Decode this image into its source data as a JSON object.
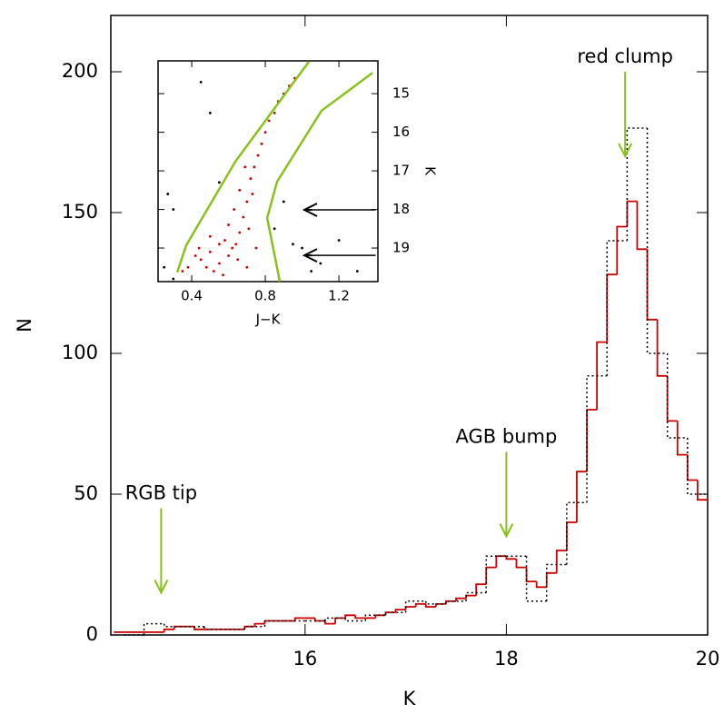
{
  "chart_data": [
    {
      "type": "histogram",
      "x_label": "K",
      "y_label": "N",
      "xlim": [
        14.07,
        20
      ],
      "ylim": [
        0,
        220
      ],
      "xticks": [
        16,
        18,
        20
      ],
      "yticks": [
        0,
        50,
        100,
        150,
        200
      ],
      "series": [
        {
          "color": "#cc0000",
          "style": "solid",
          "bins": [
            14.1,
            14.2,
            14.3,
            14.4,
            14.5,
            14.6,
            14.7,
            14.8,
            14.9,
            15.0,
            15.1,
            15.2,
            15.3,
            15.4,
            15.5,
            15.6,
            15.7,
            15.8,
            15.9,
            16.0,
            16.1,
            16.2,
            16.3,
            16.4,
            16.5,
            16.6,
            16.7,
            16.8,
            16.9,
            17.0,
            17.1,
            17.2,
            17.3,
            17.4,
            17.5,
            17.6,
            17.7,
            17.8,
            17.9,
            18.0,
            18.1,
            18.2,
            18.3,
            18.4,
            18.5,
            18.6,
            18.7,
            18.8,
            18.9,
            19.0,
            19.1,
            19.2,
            19.3,
            19.4,
            19.5,
            19.6,
            19.7,
            19.8,
            19.9,
            20.0
          ],
          "values": [
            1,
            1,
            1,
            1,
            1,
            2,
            3,
            3,
            2,
            2,
            2,
            2,
            2,
            3,
            4,
            5,
            5,
            5,
            6,
            6,
            5,
            4,
            6,
            7,
            6,
            6,
            7,
            8,
            9,
            10,
            11,
            10,
            11,
            12,
            13,
            14,
            18,
            24,
            28,
            27,
            24,
            19,
            17,
            22,
            30,
            40,
            58,
            80,
            104,
            128,
            145,
            154,
            137,
            112,
            92,
            76,
            64,
            55,
            48
          ]
        },
        {
          "color": "#000000",
          "style": "dotted",
          "bins": [
            14.2,
            14.4,
            14.6,
            14.8,
            15.0,
            15.2,
            15.4,
            15.6,
            15.8,
            16.0,
            16.2,
            16.4,
            16.6,
            16.8,
            17.0,
            17.2,
            17.4,
            17.6,
            17.8,
            18.0,
            18.2,
            18.4,
            18.6,
            18.8,
            19.0,
            19.2,
            19.4,
            19.6,
            19.8,
            20.0
          ],
          "values": [
            0,
            4,
            3,
            3,
            2,
            2,
            3,
            5,
            5,
            5,
            6,
            5,
            7,
            8,
            12,
            11,
            12,
            15,
            28,
            28,
            12,
            25,
            47,
            92,
            140,
            180,
            100,
            70,
            50
          ]
        }
      ],
      "annotations": [
        {
          "text": "RGB tip",
          "x": 14.57,
          "y_tip": 15,
          "y_tail": 45,
          "color": "#88c21a"
        },
        {
          "text": "AGB bump",
          "x": 18.0,
          "y_tip": 35,
          "y_tail": 65,
          "color": "#88c21a"
        },
        {
          "text": "red clump",
          "x": 19.18,
          "y_tip": 170,
          "y_tail": 200,
          "color": "#88c21a"
        }
      ]
    },
    {
      "type": "scatter",
      "x_label": "J−K",
      "y_label": "K",
      "xlim": [
        0.217,
        1.412
      ],
      "ylim": [
        19.87,
        14.15
      ],
      "xticks": [
        0.4,
        0.8,
        1.2
      ],
      "yticks": [
        15,
        16,
        17,
        18,
        19
      ],
      "series": [
        {
          "color": "#cc0000",
          "x": [
            0.45,
            0.5,
            0.55,
            0.6,
            0.48,
            0.62,
            0.58,
            0.65,
            0.7,
            0.52,
            0.42,
            0.38,
            0.66,
            0.6,
            0.68,
            0.63,
            0.7,
            0.66,
            0.72,
            0.74,
            0.76,
            0.78,
            0.8,
            0.82,
            0.85,
            0.87,
            0.9,
            0.93,
            0.96,
            0.73,
            0.69,
            0.77,
            0.55,
            0.75,
            0.44,
            0.57,
            0.64,
            0.5,
            0.71,
            0.35
          ],
          "values": [
            19.3,
            19.1,
            19.4,
            19.2,
            19.5,
            19.0,
            18.8,
            19.3,
            19.5,
            19.6,
            19.2,
            19.5,
            18.6,
            18.4,
            18.2,
            18.0,
            17.8,
            17.5,
            17.2,
            16.9,
            16.6,
            16.3,
            16.0,
            15.7,
            15.5,
            15.2,
            15.0,
            14.8,
            14.6,
            17.6,
            16.9,
            15.9,
            18.9,
            19.0,
            19.0,
            19.7,
            18.9,
            18.7,
            18.5,
            19.6
          ]
        },
        {
          "color": "#000000",
          "x": [
            0.25,
            0.3,
            0.27,
            0.5,
            0.45,
            0.85,
            1.0,
            1.1,
            1.3,
            0.95,
            1.2,
            0.3,
            0.55,
            1.05,
            0.9
          ],
          "values": [
            19.5,
            18.0,
            17.6,
            15.5,
            14.7,
            18.5,
            19.0,
            19.4,
            19.6,
            18.9,
            18.8,
            19.8,
            17.3,
            19.6,
            17.8
          ]
        }
      ],
      "lines": [
        {
          "color": "#88c21a",
          "x": [
            0.321,
            0.37,
            0.637,
            1.037
          ],
          "values": [
            19.63,
            18.93,
            16.76,
            14.17
          ]
        },
        {
          "color": "#88c21a",
          "x": [
            0.879,
            0.81,
            0.864,
            1.106,
            1.383
          ],
          "values": [
            19.87,
            18.22,
            17.28,
            15.44,
            14.46
          ]
        }
      ],
      "arrows": [
        {
          "x_tail": 1.4,
          "x_tip": 1.012,
          "y": 18.01,
          "color": "#000000"
        },
        {
          "x_tail": 1.4,
          "x_tip": 1.012,
          "y": 19.19,
          "color": "#000000"
        }
      ]
    }
  ]
}
